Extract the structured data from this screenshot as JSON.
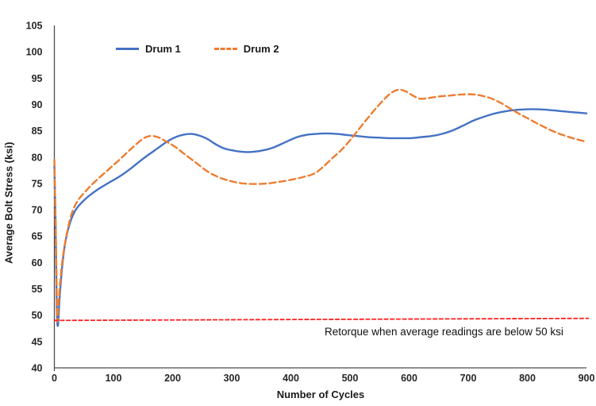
{
  "chart_data": {
    "type": "line",
    "xlabel": "Number of Cycles",
    "ylabel": "Average Bolt Stress (ksi)",
    "xlim": [
      0,
      900
    ],
    "ylim": [
      40,
      105
    ],
    "x_ticks": [
      0,
      100,
      200,
      300,
      400,
      500,
      600,
      700,
      800,
      900
    ],
    "y_ticks": [
      40,
      45,
      50,
      55,
      60,
      65,
      70,
      75,
      80,
      85,
      90,
      95,
      100,
      105
    ],
    "grid": false,
    "legend_position": "top-left-inside",
    "axis_color": "#4d4d4d",
    "series": [
      {
        "name": "Drum 1",
        "color": "#4472C4",
        "style": "solid",
        "points": [
          [
            0,
            78.5
          ],
          [
            2,
            68
          ],
          [
            4,
            52
          ],
          [
            6,
            48
          ],
          [
            9,
            53.5
          ],
          [
            13,
            59
          ],
          [
            18,
            63.5
          ],
          [
            25,
            67
          ],
          [
            35,
            69.8
          ],
          [
            50,
            71.8
          ],
          [
            70,
            73.6
          ],
          [
            90,
            75
          ],
          [
            110,
            76.3
          ],
          [
            130,
            77.9
          ],
          [
            150,
            79.7
          ],
          [
            170,
            81.3
          ],
          [
            190,
            82.9
          ],
          [
            205,
            83.8
          ],
          [
            220,
            84.3
          ],
          [
            232,
            84.4
          ],
          [
            245,
            84.1
          ],
          [
            258,
            83.5
          ],
          [
            272,
            82.5
          ],
          [
            286,
            81.7
          ],
          [
            300,
            81.3
          ],
          [
            318,
            81
          ],
          [
            336,
            81
          ],
          [
            354,
            81.3
          ],
          [
            372,
            81.9
          ],
          [
            390,
            82.8
          ],
          [
            408,
            83.7
          ],
          [
            425,
            84.2
          ],
          [
            442,
            84.4
          ],
          [
            460,
            84.5
          ],
          [
            478,
            84.4
          ],
          [
            495,
            84.2
          ],
          [
            512,
            84
          ],
          [
            530,
            83.8
          ],
          [
            548,
            83.7
          ],
          [
            566,
            83.6
          ],
          [
            584,
            83.6
          ],
          [
            602,
            83.6
          ],
          [
            620,
            83.8
          ],
          [
            638,
            84
          ],
          [
            655,
            84.4
          ],
          [
            672,
            85
          ],
          [
            690,
            85.9
          ],
          [
            708,
            86.9
          ],
          [
            725,
            87.6
          ],
          [
            742,
            88.2
          ],
          [
            758,
            88.6
          ],
          [
            775,
            88.9
          ],
          [
            792,
            89.05
          ],
          [
            808,
            89.1
          ],
          [
            825,
            89.05
          ],
          [
            842,
            88.9
          ],
          [
            860,
            88.7
          ],
          [
            880,
            88.5
          ],
          [
            900,
            88.3
          ]
        ]
      },
      {
        "name": "Drum 2",
        "color": "#ED7D31",
        "style": "dashed",
        "points": [
          [
            0,
            79.5
          ],
          [
            3,
            62
          ],
          [
            5,
            49.2
          ],
          [
            7,
            52
          ],
          [
            10,
            56.5
          ],
          [
            15,
            61.5
          ],
          [
            22,
            66
          ],
          [
            30,
            69.5
          ],
          [
            40,
            71.8
          ],
          [
            55,
            73.8
          ],
          [
            70,
            75.5
          ],
          [
            90,
            77.5
          ],
          [
            110,
            79.5
          ],
          [
            130,
            81.6
          ],
          [
            150,
            83.5
          ],
          [
            162,
            84
          ],
          [
            175,
            83.8
          ],
          [
            190,
            82.9
          ],
          [
            205,
            81.9
          ],
          [
            220,
            80.6
          ],
          [
            240,
            78.9
          ],
          [
            260,
            77.2
          ],
          [
            280,
            76.1
          ],
          [
            300,
            75.4
          ],
          [
            320,
            75
          ],
          [
            340,
            74.9
          ],
          [
            360,
            75
          ],
          [
            380,
            75.3
          ],
          [
            400,
            75.7
          ],
          [
            420,
            76.2
          ],
          [
            440,
            76.9
          ],
          [
            455,
            78.2
          ],
          [
            470,
            79.8
          ],
          [
            485,
            81.3
          ],
          [
            500,
            83.2
          ],
          [
            515,
            85.3
          ],
          [
            530,
            87.4
          ],
          [
            545,
            89.4
          ],
          [
            558,
            91
          ],
          [
            570,
            92.2
          ],
          [
            582,
            92.8
          ],
          [
            594,
            92.5
          ],
          [
            606,
            91.7
          ],
          [
            618,
            91.1
          ],
          [
            632,
            91.2
          ],
          [
            650,
            91.5
          ],
          [
            670,
            91.7
          ],
          [
            690,
            91.9
          ],
          [
            710,
            91.9
          ],
          [
            725,
            91.6
          ],
          [
            740,
            91.1
          ],
          [
            755,
            90.3
          ],
          [
            770,
            89.3
          ],
          [
            785,
            88.3
          ],
          [
            800,
            87.4
          ],
          [
            820,
            86.2
          ],
          [
            840,
            85.1
          ],
          [
            860,
            84.2
          ],
          [
            880,
            83.5
          ],
          [
            900,
            82.9
          ]
        ]
      },
      {
        "id": "retorque-threshold-line",
        "color": "#FF2020",
        "style": "dashed-fine",
        "points": [
          [
            0,
            49
          ],
          [
            903,
            49.4
          ]
        ]
      }
    ],
    "annotation": {
      "text": "Retorque when average readings are below 50 ksi"
    }
  }
}
